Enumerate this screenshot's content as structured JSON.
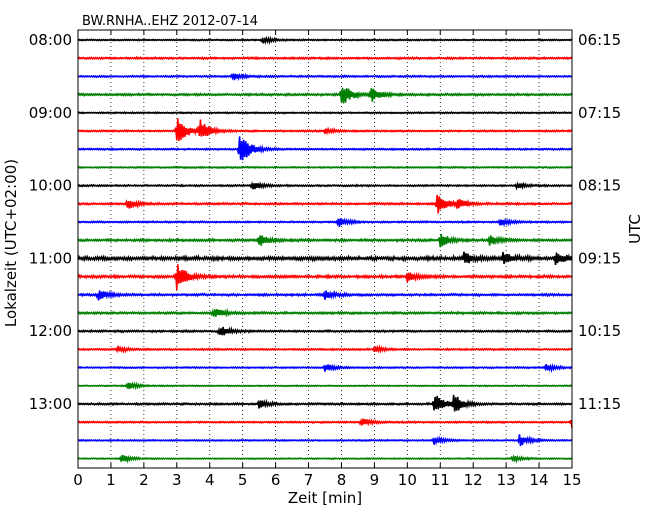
{
  "chart_data": {
    "type": "line",
    "title": "BW.RNHA..EHZ 2012-07-14",
    "xlabel": "Zeit  [min]",
    "ylabel_left": "Lokalzeit (UTC+02:00)",
    "ylabel_right": "UTC",
    "xlim": [
      0,
      15
    ],
    "x_ticks": [
      "0",
      "1",
      "2",
      "3",
      "4",
      "5",
      "6",
      "7",
      "8",
      "9",
      "10",
      "11",
      "12",
      "13",
      "14",
      "15"
    ],
    "grid": "vertical dotted",
    "left_tick_labels": [
      "08:00",
      "09:00",
      "10:00",
      "11:00",
      "12:00",
      "13:00"
    ],
    "right_tick_labels": [
      "06:15",
      "07:15",
      "08:15",
      "09:15",
      "10:15",
      "11:15"
    ],
    "trace_minutes_per_row": 15,
    "color_cycle": [
      "#000000",
      "#ff0000",
      "#0000ff",
      "#008000"
    ],
    "traces": [
      {
        "start": "08:00",
        "noise": 0.5,
        "events": [
          [
            5.6,
            4
          ]
        ]
      },
      {
        "start": "08:15",
        "noise": 0.7,
        "events": []
      },
      {
        "start": "08:30",
        "noise": 0.6,
        "events": [
          [
            4.7,
            4
          ]
        ]
      },
      {
        "start": "08:45",
        "noise": 0.8,
        "events": [
          [
            8.0,
            12
          ],
          [
            8.9,
            7
          ]
        ]
      },
      {
        "start": "09:00",
        "noise": 0.5,
        "events": []
      },
      {
        "start": "09:15",
        "noise": 0.6,
        "events": [
          [
            3.0,
            16
          ],
          [
            3.7,
            12
          ],
          [
            7.5,
            3
          ]
        ]
      },
      {
        "start": "09:30",
        "noise": 0.6,
        "events": [
          [
            4.9,
            20
          ]
        ]
      },
      {
        "start": "09:45",
        "noise": 0.5,
        "events": []
      },
      {
        "start": "10:00",
        "noise": 0.6,
        "events": [
          [
            5.3,
            4
          ],
          [
            13.3,
            3
          ]
        ]
      },
      {
        "start": "10:15",
        "noise": 0.7,
        "events": [
          [
            1.5,
            5
          ],
          [
            10.9,
            12
          ],
          [
            11.5,
            5
          ]
        ]
      },
      {
        "start": "10:30",
        "noise": 0.6,
        "events": [
          [
            7.9,
            5
          ],
          [
            12.8,
            4
          ]
        ]
      },
      {
        "start": "10:45",
        "noise": 0.9,
        "events": [
          [
            5.5,
            6
          ],
          [
            11.0,
            7
          ],
          [
            12.5,
            5
          ]
        ]
      },
      {
        "start": "11:00",
        "noise": 1.4,
        "events": [
          [
            11.7,
            6
          ],
          [
            12.9,
            6
          ],
          [
            14.5,
            6
          ]
        ]
      },
      {
        "start": "11:15",
        "noise": 1.0,
        "events": [
          [
            3.0,
            14
          ],
          [
            10.0,
            5
          ]
        ]
      },
      {
        "start": "11:30",
        "noise": 0.8,
        "events": [
          [
            0.6,
            6
          ],
          [
            7.5,
            4
          ]
        ]
      },
      {
        "start": "11:45",
        "noise": 0.8,
        "events": [
          [
            4.1,
            6
          ]
        ]
      },
      {
        "start": "12:00",
        "noise": 0.7,
        "events": [
          [
            4.3,
            6
          ]
        ]
      },
      {
        "start": "12:15",
        "noise": 0.6,
        "events": [
          [
            1.2,
            3
          ],
          [
            9.0,
            3
          ]
        ]
      },
      {
        "start": "12:30",
        "noise": 0.5,
        "events": [
          [
            7.5,
            4
          ],
          [
            14.2,
            4
          ]
        ]
      },
      {
        "start": "12:45",
        "noise": 0.4,
        "events": [
          [
            1.5,
            4
          ]
        ]
      },
      {
        "start": "13:00",
        "noise": 0.7,
        "events": [
          [
            5.5,
            4
          ],
          [
            10.8,
            12
          ],
          [
            11.4,
            10
          ]
        ]
      },
      {
        "start": "13:15",
        "noise": 0.6,
        "events": [
          [
            8.6,
            4
          ],
          [
            15.0,
            7
          ]
        ]
      },
      {
        "start": "13:30",
        "noise": 0.5,
        "events": [
          [
            10.8,
            4
          ],
          [
            13.4,
            6
          ]
        ]
      },
      {
        "start": "13:45",
        "noise": 0.4,
        "events": [
          [
            1.3,
            4
          ],
          [
            13.2,
            3
          ]
        ]
      }
    ]
  }
}
